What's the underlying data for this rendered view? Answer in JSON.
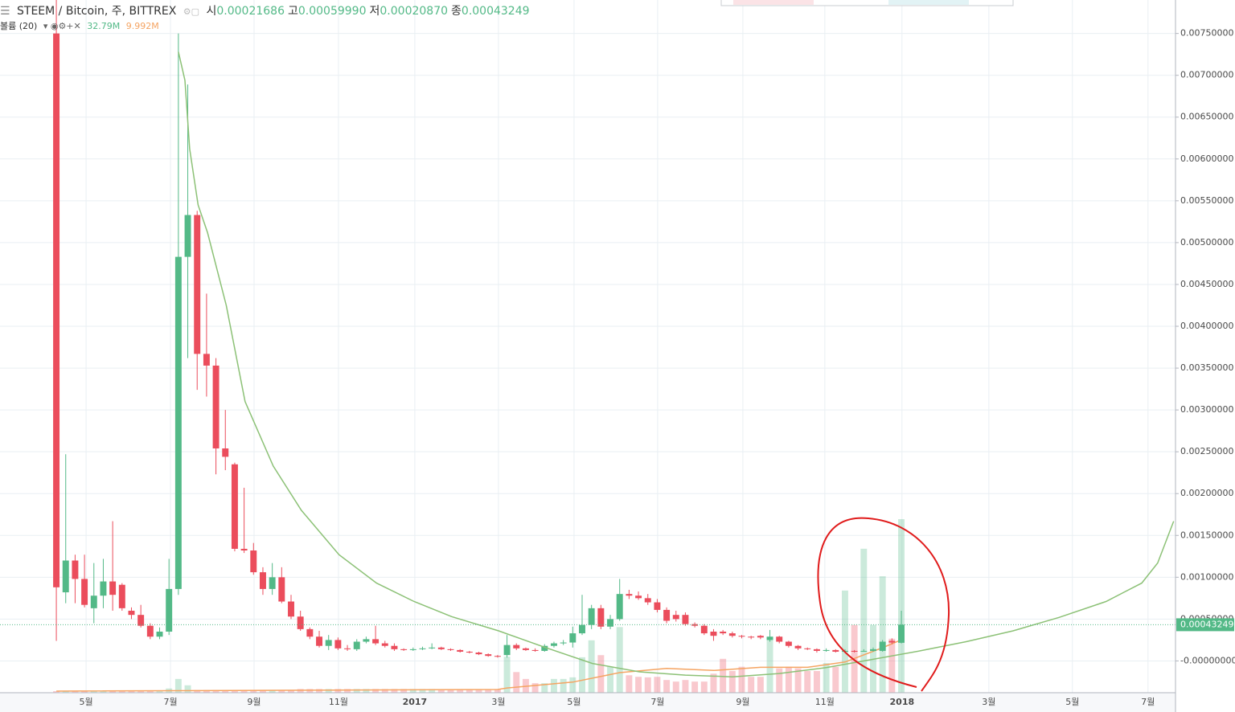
{
  "chart_data": {
    "type": "candlestick",
    "title": "STEEM / Bitcoin, 주, BITTREX",
    "ohlc_legend": [
      {
        "label": "시",
        "value": "0.00021686"
      },
      {
        "label": "고",
        "value": "0.00059990"
      },
      {
        "label": "저",
        "value": "0.00020870"
      },
      {
        "label": "종",
        "value": "0.00043249"
      }
    ],
    "volume_title": "볼륨 (20)",
    "volume_value": "32.79M",
    "volume_ma_value": "9.992M",
    "up_color": "#53b987",
    "down_color": "#eb4d5c",
    "x": [
      0,
      1,
      2,
      3,
      4,
      5,
      6,
      7,
      8,
      9,
      10,
      11,
      12,
      13,
      14,
      15,
      16,
      17,
      18,
      19,
      20,
      21,
      22,
      23,
      24,
      25,
      26,
      27,
      28,
      29,
      30,
      31,
      32,
      33,
      34,
      35,
      36,
      37,
      38,
      39,
      40,
      41,
      42,
      43,
      44,
      45,
      46,
      47,
      48,
      49,
      50,
      51,
      52,
      53,
      54,
      55,
      56,
      57,
      58,
      59,
      60,
      61,
      62,
      63,
      64,
      65,
      66,
      67,
      68,
      69,
      70,
      71,
      72,
      73,
      74,
      75,
      76,
      77,
      78,
      79,
      80,
      81,
      82,
      83,
      84,
      85,
      86,
      87,
      88,
      89,
      90
    ],
    "open": [
      0.0075,
      0.00082,
      0.0012,
      0.00098,
      0.00063,
      0.00078,
      0.00095,
      0.00091,
      0.0006,
      0.00055,
      0.00042,
      0.00029,
      0.00035,
      0.00086,
      0.00483,
      0.00533,
      0.00367,
      0.00353,
      0.00254,
      0.00235,
      0.00134,
      0.00132,
      0.00106,
      0.00086,
      0.001,
      0.00071,
      0.00053,
      0.00038,
      0.00029,
      0.00018,
      0.00025,
      0.00015,
      0.00014,
      0.00023,
      0.00026,
      0.00021,
      0.00018,
      0.00014,
      0.00013,
      0.00014,
      0.00015,
      0.00016,
      0.00014,
      0.00013,
      0.00011,
      0.0001,
      8e-05,
      6e-05,
      7e-05,
      0.00019,
      0.00015,
      0.00013,
      0.00012,
      0.00018,
      0.00021,
      0.00022,
      0.00033,
      0.00043,
      0.00063,
      0.00041,
      0.0005,
      0.0008,
      0.00078,
      0.00075,
      0.0007,
      0.00061,
      0.00055,
      0.00055,
      0.00044,
      0.00042,
      0.00035,
      0.00035,
      0.00033,
      0.0003,
      0.00029,
      0.0003,
      0.00025,
      0.00029,
      0.00023,
      0.00018,
      0.00015,
      0.00014,
      0.00012,
      0.00013,
      0.00011,
      0.00012,
      0.00012,
      0.00012,
      0.00012,
      0.00024,
      0.00021686
    ],
    "high": [
      0.0079,
      0.00247,
      0.00127,
      0.00127,
      0.00117,
      0.00122,
      0.00167,
      0.00093,
      0.00064,
      0.00067,
      0.00045,
      0.0004,
      0.00122,
      0.0075,
      0.00689,
      0.00538,
      0.00439,
      0.00362,
      0.003,
      0.00237,
      0.00207,
      0.00141,
      0.00112,
      0.00117,
      0.00112,
      0.00079,
      0.0006,
      0.0004,
      0.00036,
      0.00031,
      0.00028,
      0.00019,
      0.00026,
      0.00029,
      0.00042,
      0.00024,
      0.00021,
      0.00015,
      0.00016,
      0.00017,
      0.00021,
      0.00017,
      0.00015,
      0.00014,
      0.00012,
      0.00011,
      9e-05,
      7e-05,
      0.00031,
      0.00021,
      0.00016,
      0.00015,
      0.0002,
      0.00023,
      0.00025,
      0.00041,
      0.00079,
      0.00067,
      0.00067,
      0.00055,
      0.00098,
      0.00085,
      0.00083,
      0.0008,
      0.00074,
      0.00064,
      0.0006,
      0.00058,
      0.00046,
      0.00044,
      0.00038,
      0.00037,
      0.00035,
      0.00031,
      0.0003,
      0.00031,
      0.00037,
      0.0003,
      0.00024,
      0.00019,
      0.00016,
      0.00015,
      0.00015,
      0.00014,
      0.00014,
      0.00013,
      0.00014,
      0.00016,
      0.00025,
      0.00027,
      0.0005999
    ],
    "low": [
      0.00024,
      0.00069,
      0.00069,
      0.00064,
      0.00045,
      0.00063,
      0.0006,
      0.0006,
      0.0005,
      0.0004,
      0.00026,
      0.00026,
      0.00031,
      0.00079,
      0.00362,
      0.00324,
      0.00316,
      0.00223,
      0.00228,
      0.00131,
      0.00129,
      0.00103,
      0.00079,
      0.00079,
      0.00069,
      0.0005,
      0.00036,
      0.00026,
      0.00016,
      0.00013,
      0.00013,
      0.00012,
      0.00012,
      0.00021,
      0.00019,
      0.00016,
      0.00012,
      0.00012,
      0.00012,
      0.00013,
      0.00014,
      0.00013,
      0.00012,
      0.0001,
      9e-05,
      7e-05,
      5e-05,
      4e-05,
      4e-05,
      0.00013,
      0.00012,
      0.00011,
      0.00011,
      0.00016,
      0.00019,
      0.00016,
      0.00031,
      0.00038,
      0.00038,
      0.00038,
      0.00048,
      0.00074,
      0.00073,
      0.00067,
      0.00058,
      0.00045,
      0.00047,
      0.00042,
      0.0004,
      0.00031,
      0.00024,
      0.00031,
      0.00028,
      0.00027,
      0.00026,
      0.00026,
      0.00023,
      0.00021,
      0.00016,
      0.00013,
      0.00013,
      0.0001,
      0.00011,
      0.0001,
      0.0001,
      0.0001,
      0.00011,
      0.00011,
      0.00011,
      0.0002,
      0.0002087
    ],
    "close": [
      0.00088,
      0.0012,
      0.00098,
      0.00067,
      0.00078,
      0.00095,
      0.00079,
      0.00063,
      0.00055,
      0.00042,
      0.00029,
      0.00035,
      0.00086,
      0.00483,
      0.00533,
      0.00367,
      0.00353,
      0.00254,
      0.00244,
      0.00134,
      0.00132,
      0.00106,
      0.00086,
      0.001,
      0.00071,
      0.00053,
      0.00038,
      0.00029,
      0.00018,
      0.00025,
      0.00015,
      0.00014,
      0.00023,
      0.00026,
      0.00021,
      0.00018,
      0.00014,
      0.00013,
      0.00014,
      0.00015,
      0.00016,
      0.00014,
      0.00013,
      0.00011,
      0.0001,
      8e-05,
      6e-05,
      5e-05,
      0.00019,
      0.00015,
      0.00013,
      0.00012,
      0.00018,
      0.00021,
      0.00022,
      0.00033,
      0.00043,
      0.00063,
      0.00041,
      0.0005,
      0.0008,
      0.00078,
      0.00075,
      0.0007,
      0.00061,
      0.00048,
      0.0005,
      0.00044,
      0.00042,
      0.00033,
      0.0003,
      0.00033,
      0.0003,
      0.00029,
      0.00028,
      0.00028,
      0.00029,
      0.00023,
      0.00018,
      0.00015,
      0.00014,
      0.00012,
      0.00013,
      0.00011,
      0.00012,
      0.00011,
      0.00012,
      0.00014,
      0.00023,
      0.00022,
      0.00043249
    ],
    "volume": [
      0.3,
      0.3,
      0.3,
      0.3,
      0.3,
      0.3,
      0.3,
      0.3,
      0.3,
      0.3,
      0.3,
      0.3,
      0.8,
      2.6,
      1.4,
      0.5,
      0.5,
      0.5,
      0.5,
      0.5,
      0.5,
      0.5,
      0.5,
      0.5,
      0.5,
      0.5,
      0.7,
      0.7,
      0.7,
      0.7,
      0.7,
      0.7,
      0.7,
      0.7,
      0.7,
      0.7,
      0.7,
      0.7,
      0.7,
      0.7,
      0.7,
      0.6,
      0.6,
      0.6,
      0.6,
      0.6,
      0.6,
      0.6,
      6.8,
      3.9,
      2.6,
      1.8,
      1.8,
      2.6,
      2.6,
      2.9,
      6.7,
      9.9,
      7.1,
      4.9,
      12.4,
      3.3,
      3.0,
      2.9,
      3.0,
      2.4,
      2.1,
      2.4,
      2.1,
      2.1,
      3.6,
      6.4,
      4.1,
      4.9,
      3.0,
      3.0,
      10.5,
      4.6,
      4.9,
      4.6,
      4.1,
      4.1,
      5.6,
      4.9,
      19.3,
      12.8,
      27.2,
      12.8,
      22.0,
      10.2,
      32.79
    ],
    "ma": {
      "color": "#8cc176",
      "x": [
        13,
        13.7,
        14.2,
        15.1,
        16.1,
        18.1,
        20.1,
        23.1,
        26.1,
        30.1,
        34.1,
        38.1,
        42.1,
        47.1,
        52.1,
        57.1,
        62.1,
        67,
        72,
        77,
        82,
        87,
        92,
        96.9,
        101.9,
        106.8,
        111.8,
        115.6,
        117.3,
        119
      ],
      "values": [
        0.00728,
        0.00694,
        0.00612,
        0.00545,
        0.00512,
        0.00425,
        0.0031,
        0.00233,
        0.0018,
        0.00127,
        0.00093,
        0.00071,
        0.00053,
        0.00036,
        0.00016,
        -3e-05,
        -0.00013,
        -0.00017,
        -0.00019,
        -0.00015,
        -8e-05,
        2e-05,
        0.00012,
        0.00023,
        0.00036,
        0.00052,
        0.00071,
        0.00093,
        0.00117,
        0.00167
      ]
    },
    "volume_ma": {
      "color": "#f5a462",
      "x": [
        0,
        47,
        48,
        55,
        60,
        65,
        70,
        75,
        80,
        84,
        88,
        90
      ],
      "values": [
        0.3,
        0.6,
        0.9,
        2.0,
        3.8,
        4.6,
        4.2,
        4.8,
        4.8,
        5.8,
        8.5,
        9.992
      ]
    },
    "last_price": {
      "value": 0.00043249,
      "label": "0.00043249"
    },
    "xlim": [
      -6,
      119.2
    ],
    "ylim": [
      -0.00038,
      0.0079
    ],
    "xticks": [
      {
        "value": 3.17,
        "label": "5월"
      },
      {
        "value": 12.16,
        "label": "7월"
      },
      {
        "value": 21.06,
        "label": "9월"
      },
      {
        "value": 30.05,
        "label": "11월"
      },
      {
        "value": 38.18,
        "label": "2017"
      },
      {
        "value": 47.09,
        "label": "3월"
      },
      {
        "value": 55.14,
        "label": "5월"
      },
      {
        "value": 64.04,
        "label": "7월"
      },
      {
        "value": 73.12,
        "label": "9월"
      },
      {
        "value": 81.85,
        "label": "11월"
      },
      {
        "value": 90.07,
        "label": "2018"
      },
      {
        "value": 99.32,
        "label": "3월"
      },
      {
        "value": 108.22,
        "label": "5월"
      },
      {
        "value": 116.27,
        "label": "7월"
      }
    ],
    "yticks": [
      {
        "value": 0.0075,
        "label": "0.00750000"
      },
      {
        "value": 0.007,
        "label": "0.00700000"
      },
      {
        "value": 0.0065,
        "label": "0.00650000"
      },
      {
        "value": 0.006,
        "label": "0.00600000"
      },
      {
        "value": 0.0055,
        "label": "0.00550000"
      },
      {
        "value": 0.005,
        "label": "0.00500000"
      },
      {
        "value": 0.0045,
        "label": "0.00450000"
      },
      {
        "value": 0.004,
        "label": "0.00400000"
      },
      {
        "value": 0.0035,
        "label": "0.00350000"
      },
      {
        "value": 0.003,
        "label": "0.00300000"
      },
      {
        "value": 0.0025,
        "label": "0.00250000"
      },
      {
        "value": 0.002,
        "label": "0.00200000"
      },
      {
        "value": 0.0015,
        "label": "0.00150000"
      },
      {
        "value": 0.001,
        "label": "0.00100000"
      },
      {
        "value": 0.0005,
        "label": "0.00050000"
      },
      {
        "value": 0,
        "label": "-0.00000000"
      }
    ],
    "grid": true
  }
}
